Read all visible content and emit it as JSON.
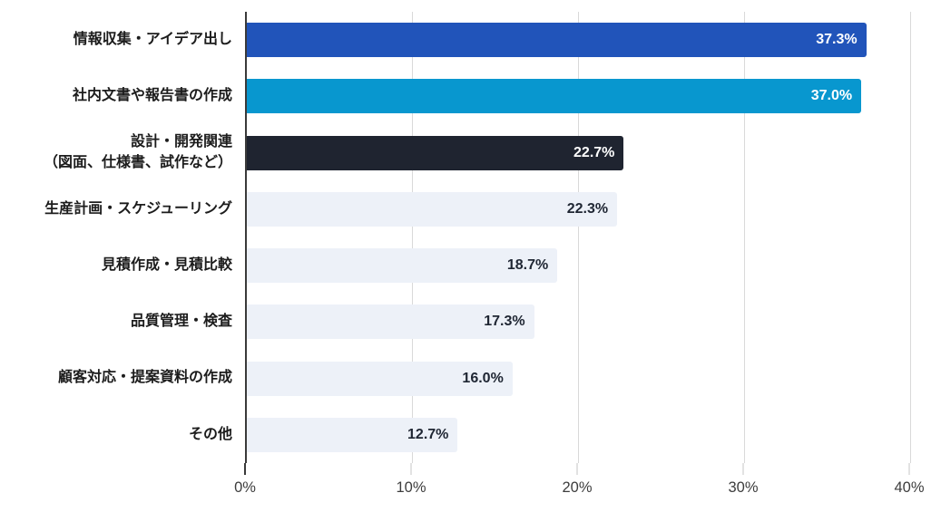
{
  "chart_data": {
    "type": "bar",
    "orientation": "horizontal",
    "title": "",
    "xlabel": "",
    "ylabel": "",
    "categories": [
      "情報収集・アイデア出し",
      "社内文書や報告書の作成",
      "設計・開発関連\n（図面、仕様書、試作など）",
      "生産計画・スケジューリング",
      "見積作成・見積比較",
      "品質管理・検査",
      "顧客対応・提案資料の作成",
      "その他"
    ],
    "values": [
      37.3,
      37.0,
      22.7,
      22.3,
      18.7,
      17.3,
      16.0,
      12.7
    ],
    "value_labels": [
      "37.3%",
      "37.0%",
      "22.7%",
      "22.3%",
      "18.7%",
      "17.3%",
      "16.0%",
      "12.7%"
    ],
    "bar_colors": [
      "#2154BA",
      "#0897CF",
      "#1F2430",
      "#EDF1F8",
      "#EDF1F8",
      "#EDF1F8",
      "#EDF1F8",
      "#EDF1F8"
    ],
    "value_text_colors": [
      "#FFFFFF",
      "#FFFFFF",
      "#FFFFFF",
      "#1F2633",
      "#1F2633",
      "#1F2633",
      "#1F2633",
      "#1F2633"
    ],
    "xlim": [
      0,
      40
    ],
    "x_tick_values": [
      0,
      10,
      20,
      30,
      40
    ],
    "x_ticks": [
      "0%",
      "10%",
      "20%",
      "30%",
      "40%"
    ],
    "grid": true,
    "legend": false,
    "axis_line_color": "#3a3a3a",
    "grid_color": "#d9d9d9",
    "background": "#ffffff"
  }
}
